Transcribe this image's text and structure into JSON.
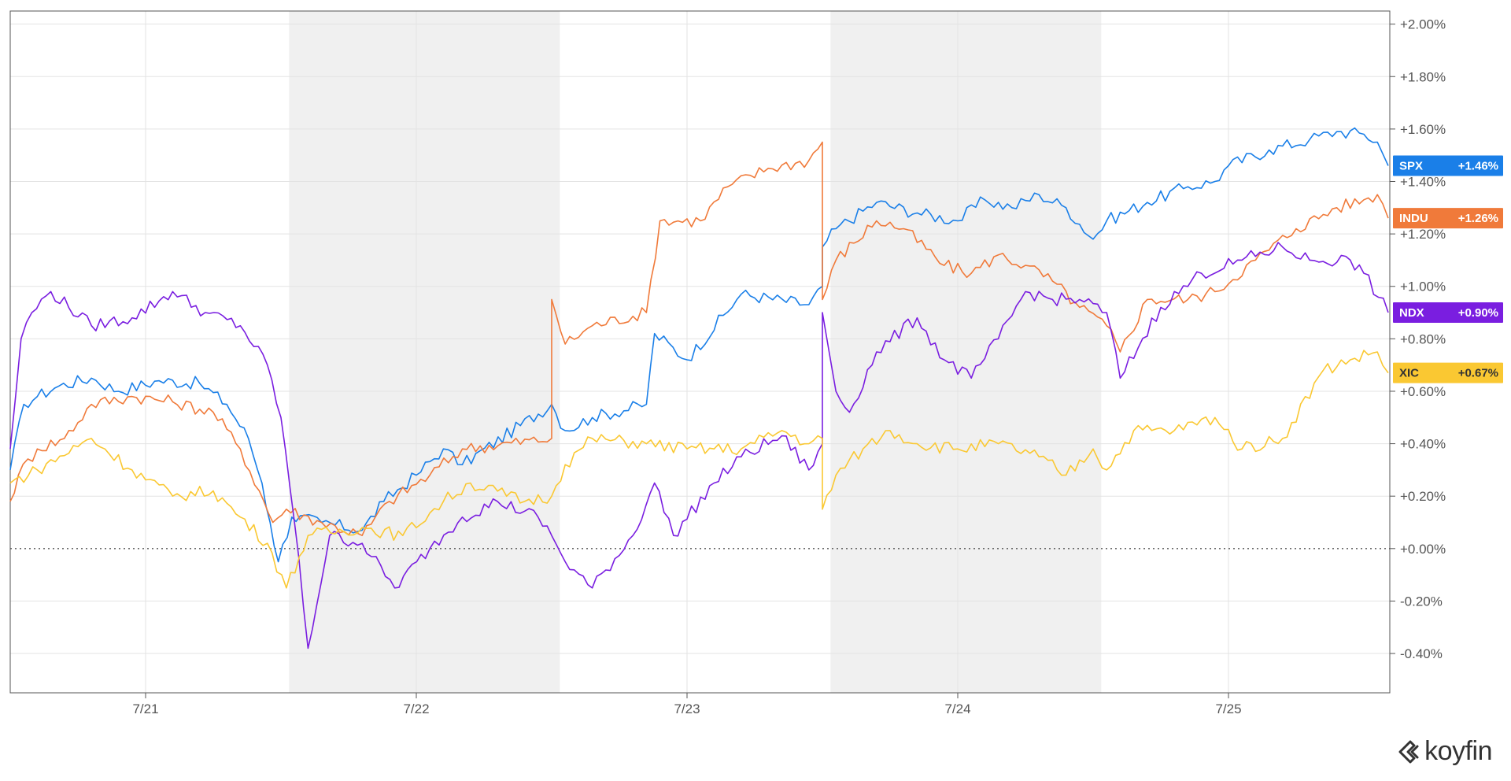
{
  "chart_data": {
    "type": "line",
    "x_labels": [
      "7/21",
      "7/22",
      "7/23",
      "7/24",
      "7/25"
    ],
    "y_ticks": [
      "+2.00%",
      "+1.80%",
      "+1.60%",
      "+1.40%",
      "+1.20%",
      "+1.00%",
      "+0.80%",
      "+0.60%",
      "+0.40%",
      "+0.20%",
      "+0.00%",
      "-0.20%",
      "-0.40%"
    ],
    "ylim": [
      -0.55,
      2.05
    ],
    "grid": true,
    "shaded_sessions": [
      1,
      3
    ],
    "series": [
      {
        "name": "SPX",
        "label": "+1.46%",
        "color": "#1a7fe8",
        "label_color": "#ffffff",
        "points": [
          [
            0,
            0.3
          ],
          [
            0.05,
            0.55
          ],
          [
            0.1,
            0.58
          ],
          [
            0.18,
            0.62
          ],
          [
            0.3,
            0.65
          ],
          [
            0.4,
            0.6
          ],
          [
            0.55,
            0.64
          ],
          [
            0.7,
            0.63
          ],
          [
            0.8,
            0.55
          ],
          [
            0.88,
            0.42
          ],
          [
            0.93,
            0.25
          ],
          [
            0.96,
            0.1
          ],
          [
            0.99,
            -0.05
          ],
          [
            1.04,
            0.12
          ],
          [
            1.15,
            0.1
          ],
          [
            1.3,
            0.07
          ],
          [
            1.38,
            0.18
          ],
          [
            1.5,
            0.28
          ],
          [
            1.6,
            0.38
          ],
          [
            1.67,
            0.32
          ],
          [
            2.0,
            0.55
          ],
          [
            2.05,
            0.45
          ],
          [
            2.15,
            0.5
          ],
          [
            2.35,
            0.55
          ],
          [
            2.38,
            0.82
          ],
          [
            2.5,
            0.72
          ],
          [
            2.7,
            0.97
          ],
          [
            2.95,
            0.93
          ],
          [
            3.0,
            1.0
          ],
          [
            3.0,
            1.15
          ],
          [
            3.05,
            1.22
          ],
          [
            3.2,
            1.32
          ],
          [
            3.35,
            1.28
          ],
          [
            3.5,
            1.25
          ],
          [
            3.6,
            1.33
          ],
          [
            3.7,
            1.3
          ],
          [
            3.8,
            1.35
          ],
          [
            3.9,
            1.3
          ],
          [
            4.0,
            1.18
          ],
          [
            4.05,
            1.25
          ],
          [
            4.2,
            1.32
          ],
          [
            4.35,
            1.38
          ],
          [
            4.45,
            1.4
          ],
          [
            4.5,
            1.46
          ],
          [
            4.65,
            1.52
          ],
          [
            4.8,
            1.56
          ],
          [
            4.9,
            1.59
          ],
          [
            5.0,
            1.58
          ],
          [
            5.05,
            1.55
          ],
          [
            5.09,
            1.46
          ]
        ]
      },
      {
        "name": "INDU",
        "label": "+1.26%",
        "color": "#f07a3a",
        "label_color": "#ffffff",
        "points": [
          [
            0,
            0.18
          ],
          [
            0.03,
            0.28
          ],
          [
            0.1,
            0.38
          ],
          [
            0.2,
            0.42
          ],
          [
            0.3,
            0.55
          ],
          [
            0.45,
            0.58
          ],
          [
            0.6,
            0.56
          ],
          [
            0.75,
            0.52
          ],
          [
            0.85,
            0.38
          ],
          [
            0.92,
            0.22
          ],
          [
            0.97,
            0.1
          ],
          [
            1.02,
            0.15
          ],
          [
            1.15,
            0.1
          ],
          [
            1.3,
            0.05
          ],
          [
            1.4,
            0.18
          ],
          [
            1.55,
            0.28
          ],
          [
            1.67,
            0.38
          ],
          [
            2.0,
            0.42
          ],
          [
            2.0,
            0.95
          ],
          [
            2.05,
            0.78
          ],
          [
            2.15,
            0.85
          ],
          [
            2.35,
            0.9
          ],
          [
            2.4,
            1.25
          ],
          [
            2.55,
            1.25
          ],
          [
            2.65,
            1.38
          ],
          [
            2.8,
            1.45
          ],
          [
            2.95,
            1.48
          ],
          [
            3.0,
            1.55
          ],
          [
            3.0,
            0.95
          ],
          [
            3.05,
            1.1
          ],
          [
            3.2,
            1.25
          ],
          [
            3.3,
            1.22
          ],
          [
            3.45,
            1.08
          ],
          [
            3.55,
            1.05
          ],
          [
            3.65,
            1.12
          ],
          [
            3.75,
            1.08
          ],
          [
            3.85,
            1.02
          ],
          [
            3.95,
            0.92
          ],
          [
            4.05,
            0.85
          ],
          [
            4.1,
            0.75
          ],
          [
            4.2,
            0.95
          ],
          [
            4.35,
            0.95
          ],
          [
            4.45,
            0.98
          ],
          [
            4.6,
            1.1
          ],
          [
            4.75,
            1.22
          ],
          [
            4.9,
            1.3
          ],
          [
            5.0,
            1.33
          ],
          [
            5.05,
            1.35
          ],
          [
            5.09,
            1.26
          ]
        ]
      },
      {
        "name": "NDX",
        "label": "+0.90%",
        "color": "#7a1ee0",
        "label_color": "#ffffff",
        "points": [
          [
            0,
            0.38
          ],
          [
            0.04,
            0.8
          ],
          [
            0.08,
            0.9
          ],
          [
            0.15,
            0.98
          ],
          [
            0.3,
            0.85
          ],
          [
            0.45,
            0.88
          ],
          [
            0.6,
            0.98
          ],
          [
            0.72,
            0.9
          ],
          [
            0.85,
            0.85
          ],
          [
            0.95,
            0.7
          ],
          [
            1.0,
            0.5
          ],
          [
            1.05,
            0.1
          ],
          [
            1.1,
            -0.38
          ],
          [
            1.18,
            0.05
          ],
          [
            1.3,
            0.02
          ],
          [
            1.42,
            -0.15
          ],
          [
            1.55,
            0.0
          ],
          [
            1.67,
            0.12
          ],
          [
            1.8,
            0.18
          ],
          [
            1.95,
            0.12
          ],
          [
            2.0,
            0.05
          ],
          [
            2.05,
            -0.05
          ],
          [
            2.15,
            -0.15
          ],
          [
            2.3,
            0.05
          ],
          [
            2.38,
            0.25
          ],
          [
            2.45,
            0.05
          ],
          [
            2.6,
            0.25
          ],
          [
            2.7,
            0.35
          ],
          [
            2.85,
            0.43
          ],
          [
            2.95,
            0.3
          ],
          [
            3.0,
            0.4
          ],
          [
            3.0,
            0.9
          ],
          [
            3.05,
            0.6
          ],
          [
            3.1,
            0.52
          ],
          [
            3.2,
            0.75
          ],
          [
            3.35,
            0.88
          ],
          [
            3.45,
            0.72
          ],
          [
            3.55,
            0.65
          ],
          [
            3.65,
            0.8
          ],
          [
            3.75,
            0.98
          ],
          [
            3.85,
            0.95
          ],
          [
            3.95,
            0.95
          ],
          [
            4.05,
            0.9
          ],
          [
            4.1,
            0.65
          ],
          [
            4.25,
            0.92
          ],
          [
            4.4,
            1.05
          ],
          [
            4.55,
            1.1
          ],
          [
            4.7,
            1.15
          ],
          [
            4.8,
            1.1
          ],
          [
            4.95,
            1.1
          ],
          [
            5.0,
            1.05
          ],
          [
            5.09,
            0.9
          ]
        ]
      },
      {
        "name": "XIC",
        "label": "+0.67%",
        "color": "#fac832",
        "label_color": "#333333",
        "points": [
          [
            0,
            0.25
          ],
          [
            0.1,
            0.3
          ],
          [
            0.3,
            0.42
          ],
          [
            0.45,
            0.3
          ],
          [
            0.6,
            0.2
          ],
          [
            0.75,
            0.22
          ],
          [
            0.85,
            0.12
          ],
          [
            0.95,
            0.02
          ],
          [
            1.02,
            -0.15
          ],
          [
            1.1,
            0.05
          ],
          [
            1.3,
            0.08
          ],
          [
            1.45,
            0.05
          ],
          [
            1.6,
            0.18
          ],
          [
            1.7,
            0.25
          ],
          [
            1.9,
            0.18
          ],
          [
            2.0,
            0.2
          ],
          [
            2.05,
            0.32
          ],
          [
            2.15,
            0.42
          ],
          [
            2.35,
            0.4
          ],
          [
            2.5,
            0.38
          ],
          [
            2.7,
            0.38
          ],
          [
            2.85,
            0.45
          ],
          [
            2.95,
            0.4
          ],
          [
            3.0,
            0.42
          ],
          [
            3.0,
            0.15
          ],
          [
            3.05,
            0.28
          ],
          [
            3.15,
            0.38
          ],
          [
            3.25,
            0.45
          ],
          [
            3.35,
            0.4
          ],
          [
            3.5,
            0.38
          ],
          [
            3.65,
            0.4
          ],
          [
            3.8,
            0.35
          ],
          [
            3.9,
            0.28
          ],
          [
            4.0,
            0.38
          ],
          [
            4.05,
            0.3
          ],
          [
            4.15,
            0.45
          ],
          [
            4.3,
            0.45
          ],
          [
            4.45,
            0.5
          ],
          [
            4.55,
            0.38
          ],
          [
            4.7,
            0.42
          ],
          [
            4.85,
            0.68
          ],
          [
            4.95,
            0.72
          ],
          [
            5.05,
            0.75
          ],
          [
            5.09,
            0.67
          ]
        ]
      }
    ]
  },
  "branding": {
    "logo_text": "koyfin"
  }
}
